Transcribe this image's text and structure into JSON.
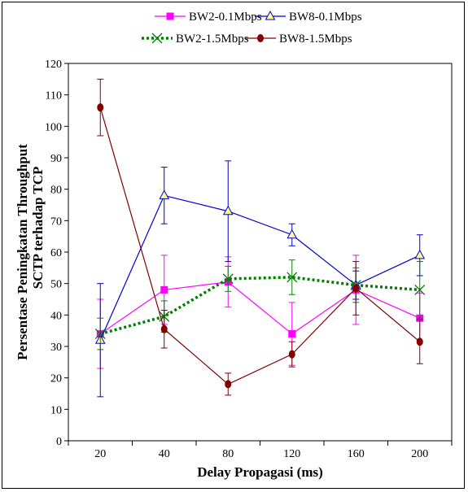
{
  "chart_data": {
    "type": "line",
    "categories": [
      "20",
      "40",
      "80",
      "120",
      "160",
      "200"
    ],
    "xlabel": "Delay Propagasi (ms)",
    "ylabel_lines": [
      "Persentase Peningkatan Throughput",
      "SCTP terhadap TCP"
    ],
    "ylim": [
      0,
      120
    ],
    "yticks": [
      0,
      10,
      20,
      30,
      40,
      50,
      60,
      70,
      80,
      90,
      100,
      110,
      120
    ],
    "yticks_shown": [
      "0",
      "10",
      "20",
      "30",
      "40",
      "50",
      "60",
      "70",
      "80",
      "90",
      "100",
      "110",
      "120"
    ],
    "grid": false,
    "legend_position": "top",
    "series": [
      {
        "name": "BW2-0.1Mbps",
        "color": "#ff00ff",
        "marker": "square",
        "line_style": "solid",
        "values": [
          34,
          48,
          50.5,
          34,
          48,
          39
        ],
        "err": [
          11,
          11,
          8,
          10,
          11,
          8
        ]
      },
      {
        "name": "BW8-0.1Mbps",
        "color": "#0000cc",
        "marker": "triangle",
        "line_style": "solid",
        "values": [
          32,
          78,
          73,
          65.5,
          49.5,
          59
        ],
        "err": [
          18,
          9,
          16,
          3.5,
          4.5,
          6.5
        ]
      },
      {
        "name": "BW2-1.5Mbps",
        "color": "#008000",
        "marker": "x",
        "line_style": "dotted",
        "values": [
          34,
          39.5,
          51.5,
          52,
          49.5,
          48
        ],
        "err": [
          5,
          5,
          4,
          5.5,
          5.5,
          9
        ]
      },
      {
        "name": "BW8-1.5Mbps",
        "color": "#800000",
        "marker": "circle",
        "line_style": "solid",
        "values": [
          106,
          35.5,
          18,
          27.5,
          48.5,
          31.5
        ],
        "err": [
          9,
          6,
          3.5,
          4,
          8.5,
          7
        ]
      }
    ]
  }
}
